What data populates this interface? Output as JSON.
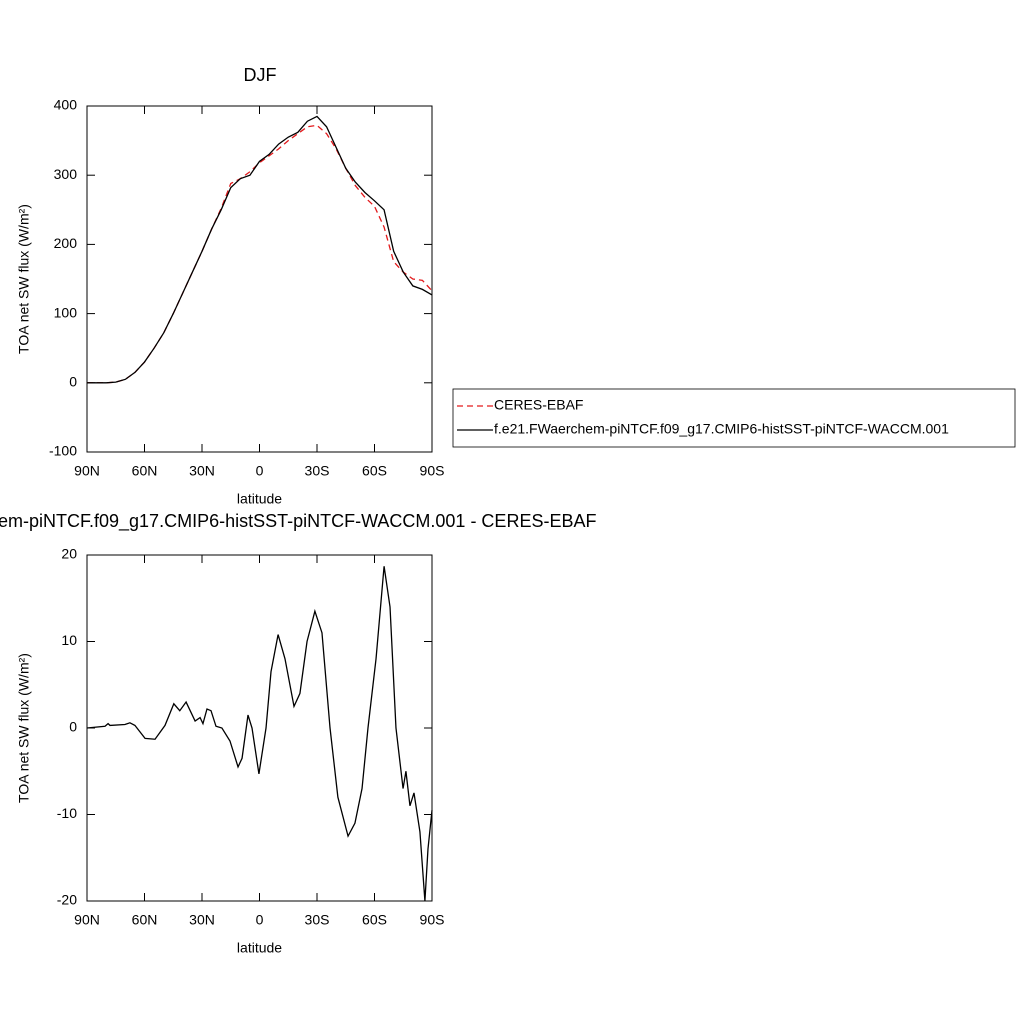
{
  "chart_data": [
    {
      "type": "line",
      "title": "DJF",
      "xlabel": "latitude",
      "ylabel": "TOA net SW flux (W/m²)",
      "x": [
        90,
        85,
        80,
        75,
        70,
        65,
        60,
        55,
        50,
        45,
        40,
        35,
        30,
        25,
        20,
        15,
        10,
        5,
        0,
        -5,
        -10,
        -15,
        -20,
        -25,
        -30,
        -35,
        -40,
        -45,
        -50,
        -55,
        -60,
        -65,
        -70,
        -75,
        -80,
        -85,
        -90
      ],
      "series": [
        {
          "name": "CERES-EBAF",
          "color": "#e31a1c",
          "dashed": true,
          "values": [
            0,
            0,
            0,
            1,
            5,
            15,
            30,
            50,
            72,
            100,
            130,
            160,
            190,
            222,
            252,
            288,
            295,
            305,
            318,
            328,
            338,
            350,
            360,
            370,
            372,
            360,
            338,
            310,
            285,
            268,
            255,
            225,
            175,
            160,
            150,
            148,
            133
          ]
        },
        {
          "name": "f.e21.FWaerchem-piNTCF.f09_g17.CMIP6-histSST-piNTCF-WACCM.001",
          "color": "#000000",
          "dashed": false,
          "values": [
            0,
            0,
            0,
            1,
            5,
            15,
            30,
            50,
            72,
            100,
            130,
            160,
            190,
            222,
            250,
            282,
            295,
            300,
            320,
            330,
            345,
            355,
            362,
            378,
            385,
            370,
            340,
            310,
            290,
            275,
            263,
            250,
            190,
            160,
            140,
            135,
            127
          ]
        }
      ],
      "xlim": [
        90,
        -90
      ],
      "xticks": [
        {
          "value": 90,
          "label": "90N"
        },
        {
          "value": 60,
          "label": "60N"
        },
        {
          "value": 30,
          "label": "30N"
        },
        0,
        {
          "value": -30,
          "label": "30S"
        },
        {
          "value": -60,
          "label": "60S"
        },
        {
          "value": -90,
          "label": "90S"
        }
      ],
      "ylim": [
        -100,
        400
      ],
      "yticks": [
        -100,
        0,
        100,
        200,
        300,
        400
      ],
      "legend": "right"
    },
    {
      "type": "line",
      "title": "em-piNTCF.f09_g17.CMIP6-histSST-piNTCF-WACCM.001 - CERES-EBAF",
      "xlabel": "latitude",
      "ylabel": "TOA net SW flux (W/m²)",
      "x": [
        90,
        80.6,
        79,
        78,
        70.2,
        67.6,
        65,
        59.7,
        54.5,
        49.3,
        44.7,
        41.6,
        38.3,
        33.6,
        31,
        29.5,
        27.4,
        25.3,
        22.7,
        19.6,
        15.4,
        11.2,
        9.1,
        6,
        3.9,
        0.3,
        -3.4,
        -6,
        -9.7,
        -13.3,
        -18,
        -21.1,
        -24.8,
        -28.9,
        -32.6,
        -36.8,
        -40.9,
        -46.2,
        -49.8,
        -53.5,
        -56.6,
        -60.8,
        -65,
        -68.1,
        -71.2,
        -74.9,
        -76.4,
        -78.5,
        -80.6,
        -83.7,
        -86.3,
        -87.9,
        -90
      ],
      "values": [
        0,
        0.2,
        0.5,
        0.3,
        0.4,
        0.6,
        0.3,
        -1.2,
        -1.3,
        0.3,
        2.8,
        2,
        3,
        0.8,
        1.2,
        0.5,
        2.2,
        2,
        0.2,
        0,
        -1.5,
        -4.5,
        -3.5,
        1.5,
        0,
        -5.3,
        0,
        6.5,
        10.8,
        8,
        2.5,
        4,
        10,
        13.5,
        11,
        0,
        -8,
        -12.5,
        -11,
        -7,
        0,
        8,
        18.7,
        14,
        0,
        -7,
        -5,
        -9,
        -7.5,
        -12,
        -20,
        -14,
        -9.5
      ],
      "color": "#000000",
      "xlim": [
        90,
        -90
      ],
      "xticks": [
        {
          "value": 90,
          "label": "90N"
        },
        {
          "value": 60,
          "label": "60N"
        },
        {
          "value": 30,
          "label": "30N"
        },
        0,
        {
          "value": -30,
          "label": "30S"
        },
        {
          "value": -60,
          "label": "60S"
        },
        {
          "value": -90,
          "label": "90S"
        }
      ],
      "ylim": [
        -20,
        20
      ],
      "yticks": [
        -20,
        -10,
        0,
        10,
        20
      ]
    }
  ]
}
